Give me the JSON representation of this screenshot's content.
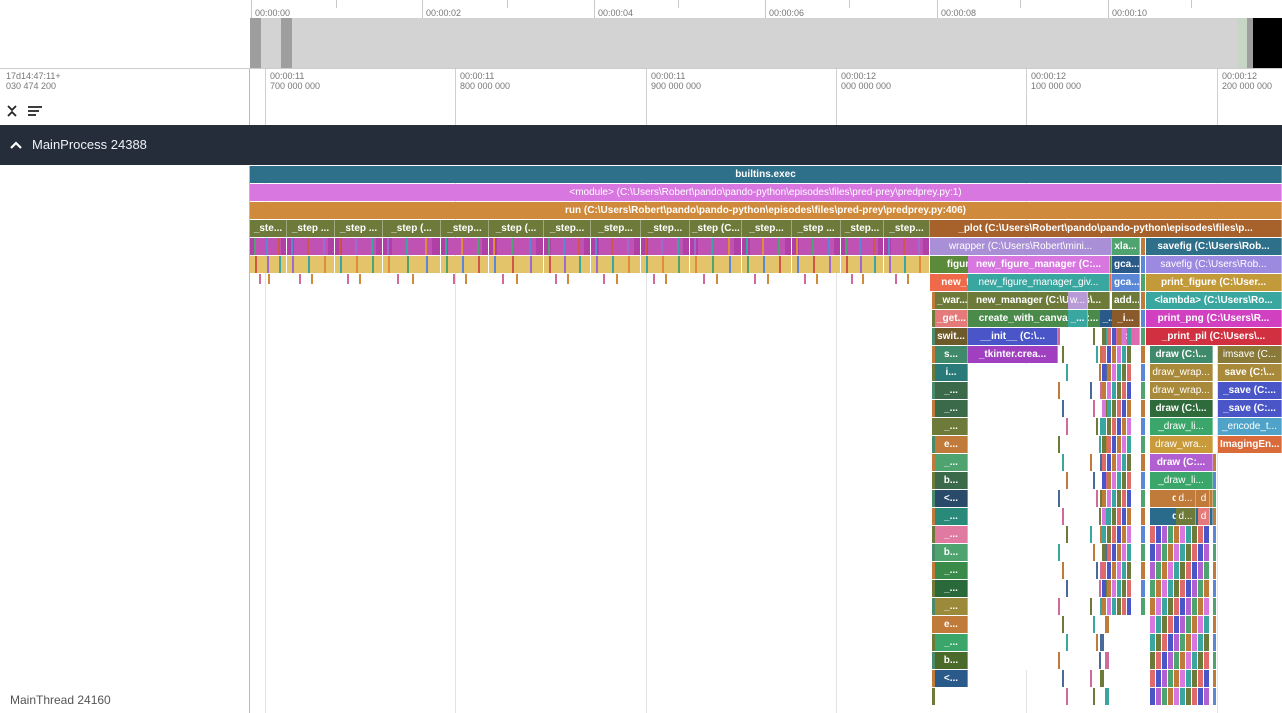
{
  "overview": {
    "ticks": [
      "00:00:00",
      "00:00:02",
      "00:00:04",
      "00:00:06",
      "00:00:08",
      "00:00:10"
    ]
  },
  "ruler": {
    "offset_line1": "17d14:47:11+",
    "offset_line2": "030 474 200",
    "ticks": [
      {
        "top": "00:00:11",
        "bottom": "700 000 000"
      },
      {
        "top": "00:00:11",
        "bottom": "800 000 000"
      },
      {
        "top": "00:00:11",
        "bottom": "900 000 000"
      },
      {
        "top": "00:00:12",
        "bottom": "000 000 000"
      },
      {
        "top": "00:00:12",
        "bottom": "100 000 000"
      },
      {
        "top": "00:00:12",
        "bottom": "200 000 000"
      }
    ],
    "expand_icon": "expand-collapse-icon",
    "sort_icon": "sort-lines-icon"
  },
  "process": {
    "title": "MainProcess 24388",
    "chevron_icon": "chevron-up-icon"
  },
  "thread": {
    "label": "MainThread 24160"
  },
  "colors": {
    "process_bar": "#252d3a",
    "teal": "#2e6f8a",
    "magenta": "#d977e0",
    "orange": "#cf8a3c",
    "olive": "#6d7a3a",
    "yellow": "#e3c46a"
  },
  "flame": {
    "row0": "builtins.exec",
    "row1": "<module> (C:\\Users\\Robert\\pando\\pando-python\\episodes\\files\\pred-prey\\predprey.py:1)",
    "row2": "run (C:\\Users\\Robert\\pando\\pando-python\\episodes\\files\\pred-prey\\predprey.py:406)",
    "steps": [
      "_ste...",
      "_step ...",
      "_step ...",
      "_step (...",
      "_step...",
      "_step (...",
      "_step...",
      "_step...",
      "_step...",
      "_step (C...",
      "_step...",
      "_step ...",
      "_step...",
      "_step..."
    ],
    "plot": "_plot (C:\\Users\\Robert\\pando\\pando-python\\episodes\\files\\p...",
    "col_a": [
      "wrapper (C:\\Users\\Robert\\mini...",
      "figure (C:\\Users\\Robert\\minic...",
      "new_figure_manager (C:\\Users\\..."
    ],
    "col_a2": [
      "_war...",
      "_get...",
      "swit...",
      "s...",
      "i...",
      "_...",
      "_...",
      "_...",
      "e...",
      "_...",
      "b...",
      "<...",
      "_...",
      "_...",
      "b...",
      "_...",
      "_...",
      "_...",
      "e...",
      "_...",
      "b...",
      "<..."
    ],
    "col_b": [
      "new_figure_manager (C:...",
      "new_figure_manager_giv...",
      "new_manager (C:\\Users\\...",
      "create_with_canvas (C:...",
      "__init__ (C:\\...",
      "_tkinter.crea..."
    ],
    "col_b_small": [
      "w...",
      "_...",
      "_..."
    ],
    "col_c": [
      "xla...",
      "gca...",
      "gca...",
      "add...",
      "_i...",
      "c"
    ],
    "col_d": [
      "savefig (C:\\Users\\Rob...",
      "savefig (C:\\Users\\Rob...",
      "print_figure (C:\\User...",
      "<lambda> (C:\\Users\\Ro...",
      "print_png (C:\\Users\\R...",
      "_print_pil (C:\\Users\\..."
    ],
    "col_d1": [
      "draw (C:\\...",
      "draw_wrap...",
      "draw_wrap...",
      "draw (C:\\...",
      "_draw_li...",
      "draw_wra...",
      "draw (C:...",
      "_draw_li...",
      "dr...",
      "dr..."
    ],
    "col_d1b": [
      "d...",
      "d..."
    ],
    "col_d1c": [
      "d",
      "d"
    ],
    "col_d2": [
      "imsave (C...",
      "save (C:\\...",
      "_save (C:...",
      "_save (C:...",
      "_encode_t...",
      "ImagingEn..."
    ]
  }
}
